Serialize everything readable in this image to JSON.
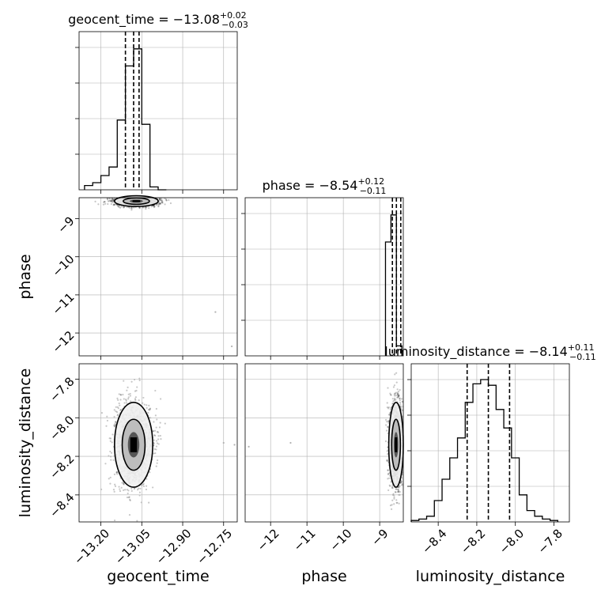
{
  "chart_data": [
    {
      "type": "histogram",
      "panel": "geocent_time-marginal",
      "title": {
        "main": "geocent_time = −13.08",
        "sup": "+0.02",
        "sub": "−0.03"
      },
      "xlim": [
        -13.28,
        -12.7
      ],
      "bins_x": [
        -13.26,
        -13.23,
        -13.2,
        -13.17,
        -13.14,
        -13.11,
        -13.08,
        -13.05,
        -13.02,
        -12.99,
        -12.96
      ],
      "counts": [
        0.03,
        0.05,
        0.1,
        0.16,
        0.49,
        0.87,
        0.99,
        0.46,
        0.02,
        0.0
      ],
      "quantiles": [
        -13.11,
        -13.08,
        -13.06
      ]
    },
    {
      "type": "histogram",
      "panel": "phase-marginal",
      "title": {
        "main": "phase = −8.54",
        "sup": "+0.12",
        "sub": "−0.11"
      },
      "xlim": [
        -12.7,
        -8.35
      ],
      "bins_x": [
        -8.84,
        -8.69,
        -8.54,
        -8.39
      ],
      "counts": [
        0.8,
        0.99,
        0.07
      ],
      "quantiles": [
        -8.65,
        -8.54,
        -8.42
      ]
    },
    {
      "type": "histogram",
      "panel": "luminosity_distance-marginal",
      "title": {
        "main": "luminosity_distance = −8.14",
        "sup": "+0.11",
        "sub": "−0.11"
      },
      "xlim": [
        -8.54,
        -7.72
      ],
      "bins_x": [
        -8.54,
        -8.5,
        -8.46,
        -8.42,
        -8.38,
        -8.34,
        -8.3,
        -8.26,
        -8.22,
        -8.18,
        -8.14,
        -8.1,
        -8.06,
        -8.02,
        -7.98,
        -7.94,
        -7.9,
        -7.86,
        -7.82,
        -7.78
      ],
      "counts": [
        0.01,
        0.02,
        0.04,
        0.15,
        0.3,
        0.45,
        0.59,
        0.84,
        0.97,
        1.0,
        0.96,
        0.79,
        0.66,
        0.45,
        0.19,
        0.08,
        0.04,
        0.02,
        0.01
      ],
      "quantiles": [
        -8.25,
        -8.14,
        -8.03
      ]
    },
    {
      "type": "scatter",
      "panel": "geocent_time-vs-phase",
      "xlim": [
        -13.28,
        -12.7
      ],
      "ylim": [
        -12.6,
        -8.45
      ],
      "center": [
        -13.07,
        -8.54
      ],
      "spread": [
        0.04,
        0.07
      ],
      "outliers": [
        [
          -12.78,
          -11.45
        ],
        [
          -12.72,
          -12.35
        ]
      ]
    },
    {
      "type": "scatter",
      "panel": "geocent_time-vs-luminosity_distance",
      "xlim": [
        -13.28,
        -12.7
      ],
      "ylim": [
        -8.54,
        -7.72
      ],
      "center": [
        -13.08,
        -8.14
      ],
      "spread": [
        0.035,
        0.11
      ],
      "outliers": [
        [
          -12.75,
          -8.13
        ],
        [
          -12.71,
          -8.14
        ]
      ]
    },
    {
      "type": "scatter",
      "panel": "phase-vs-luminosity_distance",
      "xlim": [
        -12.7,
        -8.35
      ],
      "ylim": [
        -8.54,
        -7.72
      ],
      "center": [
        -8.55,
        -8.14
      ],
      "spread": [
        0.1,
        0.11
      ],
      "outliers": [
        [
          -11.45,
          -8.13
        ],
        [
          -12.6,
          -8.15
        ]
      ]
    }
  ],
  "axes": {
    "geocent_time": {
      "label": "geocent_time",
      "ticks": [
        -13.2,
        -13.05,
        -12.9,
        -12.75
      ],
      "ticklabels": [
        "−13.20",
        "−13.05",
        "−12.90",
        "−12.75"
      ]
    },
    "phase": {
      "label": "phase",
      "ticks": [
        -12,
        -11,
        -10,
        -9
      ],
      "ticklabels": [
        "−12",
        "−11",
        "−10",
        "−9"
      ]
    },
    "luminosity_distance": {
      "label": "luminosity_distance",
      "ticks": [
        -8.4,
        -8.2,
        -8.0,
        -7.8
      ],
      "ticklabels": [
        "−8.4",
        "−8.2",
        "−8.0",
        "−7.8"
      ]
    }
  }
}
